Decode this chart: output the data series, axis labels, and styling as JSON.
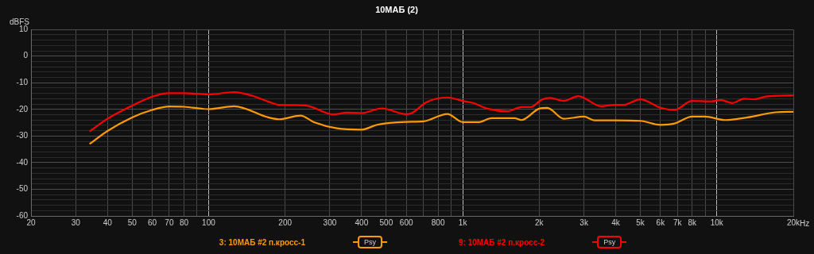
{
  "chart_data": {
    "type": "line",
    "title": "10МАБ (2)",
    "ylabel": "dBFS",
    "log": "x",
    "grid": true,
    "legend": "bottom",
    "marker": "none",
    "line_style": "solid",
    "annotations": [
      "Psy",
      "Psy"
    ],
    "xlim": [
      20,
      20000
    ],
    "ylim": [
      -60,
      10
    ],
    "xticks": [
      20,
      30,
      40,
      50,
      60,
      70,
      80,
      {
        "value": 90,
        "label": null
      },
      100,
      200,
      300,
      400,
      500,
      600,
      {
        "value": 700,
        "label": null
      },
      800,
      {
        "value": 900,
        "label": null
      },
      {
        "value": 1000,
        "label": "1k"
      },
      {
        "value": 2000,
        "label": "2k"
      },
      {
        "value": 3000,
        "label": "3k"
      },
      {
        "value": 4000,
        "label": "4k"
      },
      {
        "value": 5000,
        "label": "5k"
      },
      {
        "value": 6000,
        "label": "6k"
      },
      {
        "value": 7000,
        "label": "7k"
      },
      {
        "value": 8000,
        "label": "8k"
      },
      {
        "value": 9000,
        "label": null
      },
      {
        "value": 10000,
        "label": "10k"
      },
      {
        "value": 20000,
        "label": "20k"
      }
    ],
    "xlabel": "Hz",
    "yticks": [
      -60,
      {
        "value": -58,
        "label": null
      },
      {
        "value": -56,
        "label": null
      },
      {
        "value": -54,
        "label": null
      },
      {
        "value": -52,
        "label": null
      },
      -50,
      {
        "value": -48,
        "label": null
      },
      {
        "value": -46,
        "label": null
      },
      {
        "value": -44,
        "label": null
      },
      {
        "value": -42,
        "label": null
      },
      -40,
      {
        "value": -38,
        "label": null
      },
      {
        "value": -36,
        "label": null
      },
      {
        "value": -34,
        "label": null
      },
      {
        "value": -32,
        "label": null
      },
      -30,
      {
        "value": -28,
        "label": null
      },
      {
        "value": -26,
        "label": null
      },
      {
        "value": -24,
        "label": null
      },
      {
        "value": -22,
        "label": null
      },
      -20,
      {
        "value": -18,
        "label": null
      },
      {
        "value": -16,
        "label": null
      },
      {
        "value": -14,
        "label": null
      },
      {
        "value": -12,
        "label": null
      },
      -10,
      {
        "value": -8,
        "label": null
      },
      {
        "value": -6,
        "label": null
      },
      {
        "value": -4,
        "label": null
      },
      {
        "value": -2,
        "label": null
      },
      0,
      {
        "value": 2,
        "label": null
      },
      {
        "value": 4,
        "label": null
      },
      {
        "value": 6,
        "label": null
      },
      {
        "value": 8,
        "label": null
      },
      10
    ],
    "series": [
      {
        "name": "3: 10МАБ #2 п.кросс-1",
        "color": "#ff9a00",
        "x": [
          34,
          40,
          50,
          60,
          70,
          80,
          100,
          126,
          172,
          190,
          230,
          260,
          320,
          400,
          460,
          600,
          700,
          870,
          1000,
          1150,
          1300,
          1600,
          1700,
          2000,
          2150,
          2500,
          3000,
          3300,
          4000,
          5000,
          6000,
          6800,
          8000,
          9000,
          10800,
          13200,
          17000,
          20000
        ],
        "values": [
          -33,
          -28.1,
          -23,
          -20.2,
          -18.9,
          -19,
          -19.9,
          -18.8,
          -23,
          -23.7,
          -22.3,
          -24.8,
          -27.1,
          -27.6,
          -25.8,
          -24.7,
          -24.5,
          -21.7,
          -24.8,
          -24.8,
          -23.3,
          -23.3,
          -24,
          -19.7,
          -19.4,
          -23.5,
          -22.7,
          -24.1,
          -24.1,
          -24.3,
          -25.8,
          -25.3,
          -22.7,
          -22.7,
          -24,
          -23,
          -21.1,
          -20.9
        ]
      },
      {
        "name": "9: 10МАБ #2 п.кросс-2",
        "color": "#ff0000",
        "x": [
          34,
          40,
          50,
          60,
          70,
          80,
          100,
          126,
          149,
          172,
          190,
          240,
          310,
          350,
          400,
          480,
          600,
          630,
          720,
          870,
          1000,
          1100,
          1250,
          1500,
          1700,
          1850,
          2050,
          2200,
          2500,
          2850,
          3500,
          4000,
          4300,
          5000,
          6000,
          6800,
          8000,
          9500,
          10400,
          11500,
          12800,
          14000,
          15800,
          20000
        ],
        "values": [
          -28.3,
          -23.5,
          -18.6,
          -15.2,
          -13.9,
          -13.9,
          -14.4,
          -13.5,
          -14.9,
          -17.1,
          -18.3,
          -18.5,
          -21.9,
          -21.2,
          -21.4,
          -19.6,
          -21.8,
          -21.4,
          -17.3,
          -15.5,
          -16.8,
          -17.6,
          -19.7,
          -20.7,
          -19.1,
          -19.1,
          -16.3,
          -15.7,
          -16.8,
          -15,
          -18.8,
          -18.3,
          -18.3,
          -16.2,
          -19.4,
          -20.2,
          -16.8,
          -17,
          -16.5,
          -17.6,
          -16,
          -16.2,
          -15.1,
          -14.7
        ]
      }
    ]
  }
}
